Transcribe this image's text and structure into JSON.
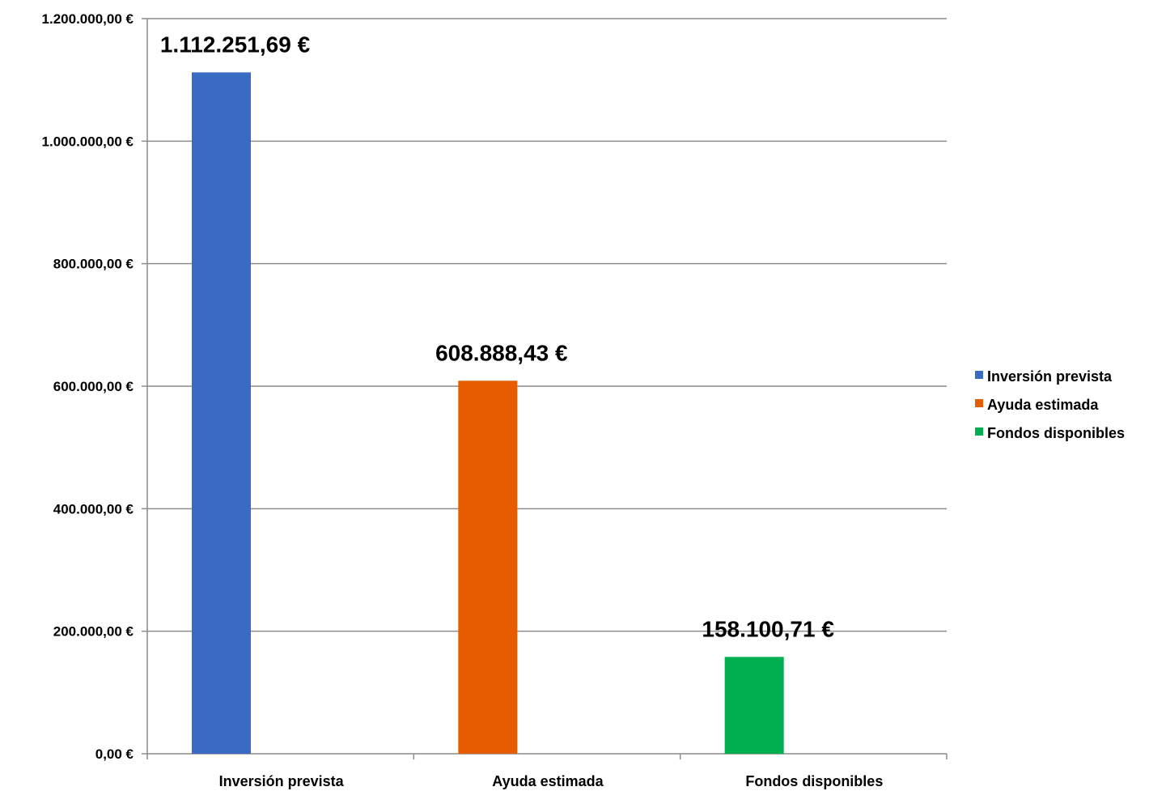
{
  "chart_data": {
    "type": "bar",
    "categories": [
      "Inversión prevista",
      "Ayuda estimada",
      "Fondos disponibles"
    ],
    "values": [
      1112251.69,
      608888.43,
      158100.71
    ],
    "data_labels": [
      "1.112.251,69 €",
      "608.888,43 €",
      "158.100,71 €"
    ],
    "colors": [
      "#3a6bc4",
      "#e65c00",
      "#00b050"
    ],
    "ylim": [
      0,
      1200000
    ],
    "yticks": [
      0,
      200000,
      400000,
      600000,
      800000,
      1000000,
      1200000
    ],
    "ytick_labels": [
      "0,00 €",
      "200.000,00 €",
      "400.000,00 €",
      "600.000,00 €",
      "800.000,00 €",
      "1.000.000,00 €",
      "1.200.000,00 €"
    ],
    "title": "",
    "xlabel": "",
    "ylabel": "",
    "grid": true,
    "legend": {
      "position": "right",
      "entries": [
        "Inversión prevista",
        "Ayuda estimada",
        "Fondos disponibles"
      ]
    }
  }
}
